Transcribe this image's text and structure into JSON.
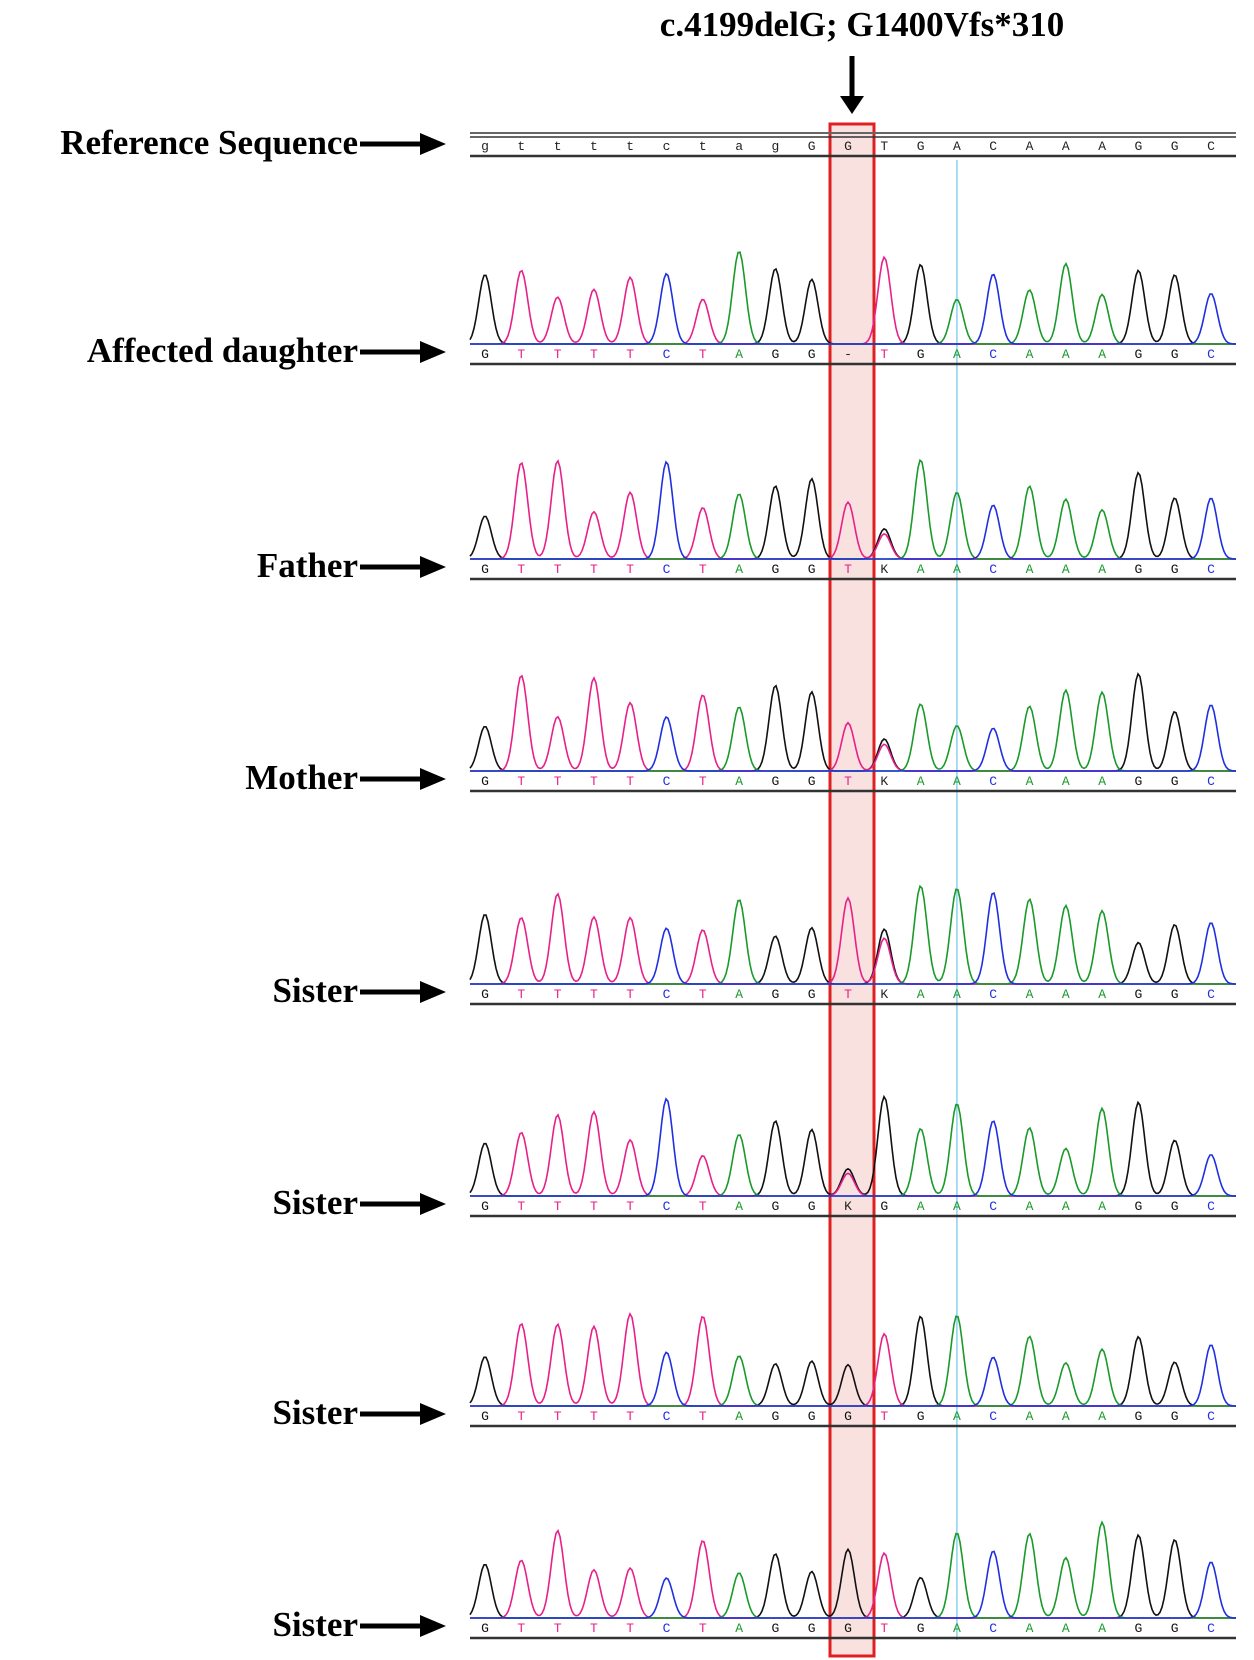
{
  "title": "c.4199delG; G1400Vfs*310",
  "rows": [
    {
      "label": "Reference Sequence",
      "bases": [
        "g",
        "t",
        "t",
        "t",
        "t",
        "c",
        "t",
        "a",
        "g",
        "G",
        "G",
        "T",
        "G",
        "A",
        "C",
        "A",
        "A",
        "A",
        "G",
        "G",
        "C"
      ]
    },
    {
      "label": "Affected daughter",
      "bases": [
        "G",
        "T",
        "T",
        "T",
        "T",
        "C",
        "T",
        "A",
        "G",
        "G",
        "-",
        "T",
        "G",
        "A",
        "C",
        "A",
        "A",
        "A",
        "G",
        "G",
        "C"
      ]
    },
    {
      "label": "Father",
      "bases": [
        "G",
        "T",
        "T",
        "T",
        "T",
        "C",
        "T",
        "A",
        "G",
        "G",
        "T",
        "K",
        "A",
        "A",
        "C",
        "A",
        "A",
        "A",
        "G",
        "G",
        "C"
      ]
    },
    {
      "label": "Mother",
      "bases": [
        "G",
        "T",
        "T",
        "T",
        "T",
        "C",
        "T",
        "A",
        "G",
        "G",
        "T",
        "K",
        "A",
        "A",
        "C",
        "A",
        "A",
        "A",
        "G",
        "G",
        "C"
      ]
    },
    {
      "label": "Sister",
      "bases": [
        "G",
        "T",
        "T",
        "T",
        "T",
        "C",
        "T",
        "A",
        "G",
        "G",
        "T",
        "K",
        "A",
        "A",
        "C",
        "A",
        "A",
        "A",
        "G",
        "G",
        "C"
      ]
    },
    {
      "label": "Sister",
      "bases": [
        "G",
        "T",
        "T",
        "T",
        "T",
        "C",
        "T",
        "A",
        "G",
        "G",
        "K",
        "G",
        "A",
        "A",
        "C",
        "A",
        "A",
        "A",
        "G",
        "G",
        "C"
      ]
    },
    {
      "label": "Sister",
      "bases": [
        "G",
        "T",
        "T",
        "T",
        "T",
        "C",
        "T",
        "A",
        "G",
        "G",
        "G",
        "T",
        "G",
        "A",
        "C",
        "A",
        "A",
        "A",
        "G",
        "G",
        "C"
      ]
    },
    {
      "label": "Sister",
      "bases": [
        "G",
        "T",
        "T",
        "T",
        "T",
        "C",
        "T",
        "A",
        "G",
        "G",
        "G",
        "T",
        "G",
        "A",
        "C",
        "A",
        "A",
        "A",
        "G",
        "G",
        "C"
      ]
    }
  ]
}
